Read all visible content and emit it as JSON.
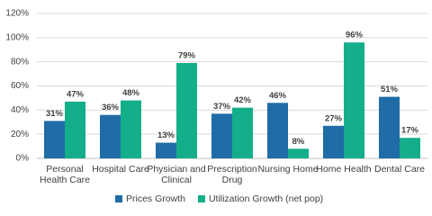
{
  "chart_data": {
    "type": "bar",
    "categories": [
      "Personal Health Care",
      "Hospital Care",
      "Physician and Clinical",
      "Prescription Drug",
      "Nursing Home",
      "Home Health",
      "Dental Care"
    ],
    "series": [
      {
        "name": "Prices Growth",
        "color": "#1f6ca6",
        "values": [
          31,
          36,
          13,
          37,
          46,
          27,
          51
        ],
        "value_labels": [
          "31%",
          "36%",
          "13%",
          "37%",
          "46%",
          "27%",
          "51%"
        ]
      },
      {
        "name": "Utilization Growth (net pop)",
        "color": "#14ae8a",
        "values": [
          47,
          48,
          79,
          42,
          8,
          96,
          17
        ],
        "value_labels": [
          "47%",
          "48%",
          "79%",
          "42%",
          "8%",
          "96%",
          "17%"
        ]
      }
    ],
    "ylim": [
      0,
      120
    ],
    "yticks": [
      {
        "value": 0,
        "label": "0%"
      },
      {
        "value": 20,
        "label": "20%"
      },
      {
        "value": 40,
        "label": "40%"
      },
      {
        "value": 60,
        "label": "60%"
      },
      {
        "value": 80,
        "label": "80%"
      },
      {
        "value": 100,
        "label": "100%"
      },
      {
        "value": 120,
        "label": "120%"
      }
    ],
    "grid": true,
    "legend": "bottom"
  }
}
